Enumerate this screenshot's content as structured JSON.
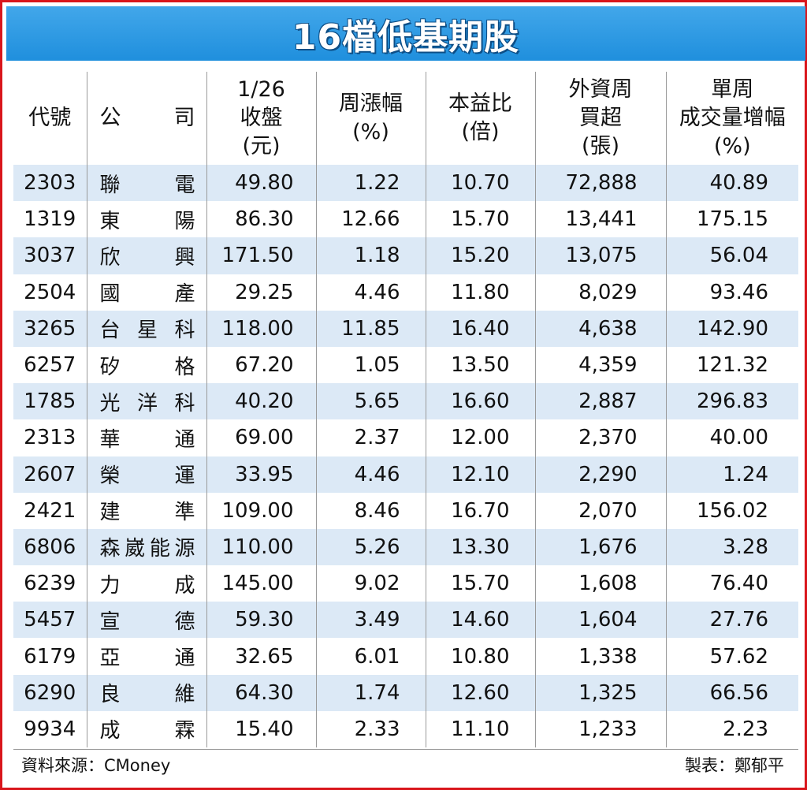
{
  "title": "16檔低基期股",
  "headers": {
    "code": "代號",
    "name": "公司",
    "close": [
      "1/26",
      "收盤",
      "(元)"
    ],
    "chg": [
      "周漲幅",
      "(%)"
    ],
    "pe": [
      "本益比",
      "(倍)"
    ],
    "foreign": [
      "外資周",
      "買超",
      "(張)"
    ],
    "vol": [
      "單周",
      "成交量增幅",
      "(%)"
    ]
  },
  "rows": [
    {
      "code": "2303",
      "name": "聯電",
      "close": "49.80",
      "chg": "1.22",
      "pe": "10.70",
      "foreign": "72,888",
      "vol": "40.89"
    },
    {
      "code": "1319",
      "name": "東陽",
      "close": "86.30",
      "chg": "12.66",
      "pe": "15.70",
      "foreign": "13,441",
      "vol": "175.15"
    },
    {
      "code": "3037",
      "name": "欣興",
      "close": "171.50",
      "chg": "1.18",
      "pe": "15.20",
      "foreign": "13,075",
      "vol": "56.04"
    },
    {
      "code": "2504",
      "name": "國產",
      "close": "29.25",
      "chg": "4.46",
      "pe": "11.80",
      "foreign": "8,029",
      "vol": "93.46"
    },
    {
      "code": "3265",
      "name": "台星科",
      "close": "118.00",
      "chg": "11.85",
      "pe": "16.40",
      "foreign": "4,638",
      "vol": "142.90"
    },
    {
      "code": "6257",
      "name": "矽格",
      "close": "67.20",
      "chg": "1.05",
      "pe": "13.50",
      "foreign": "4,359",
      "vol": "121.32"
    },
    {
      "code": "1785",
      "name": "光洋科",
      "close": "40.20",
      "chg": "5.65",
      "pe": "16.60",
      "foreign": "2,887",
      "vol": "296.83"
    },
    {
      "code": "2313",
      "name": "華通",
      "close": "69.00",
      "chg": "2.37",
      "pe": "12.00",
      "foreign": "2,370",
      "vol": "40.00"
    },
    {
      "code": "2607",
      "name": "榮運",
      "close": "33.95",
      "chg": "4.46",
      "pe": "12.10",
      "foreign": "2,290",
      "vol": "1.24"
    },
    {
      "code": "2421",
      "name": "建準",
      "close": "109.00",
      "chg": "8.46",
      "pe": "16.70",
      "foreign": "2,070",
      "vol": "156.02"
    },
    {
      "code": "6806",
      "name": "森崴能源",
      "close": "110.00",
      "chg": "5.26",
      "pe": "13.30",
      "foreign": "1,676",
      "vol": "3.28"
    },
    {
      "code": "6239",
      "name": "力成",
      "close": "145.00",
      "chg": "9.02",
      "pe": "15.70",
      "foreign": "1,608",
      "vol": "76.40"
    },
    {
      "code": "5457",
      "name": "宣德",
      "close": "59.30",
      "chg": "3.49",
      "pe": "14.60",
      "foreign": "1,604",
      "vol": "27.76"
    },
    {
      "code": "6179",
      "name": "亞通",
      "close": "32.65",
      "chg": "6.01",
      "pe": "10.80",
      "foreign": "1,338",
      "vol": "57.62"
    },
    {
      "code": "6290",
      "name": "良維",
      "close": "64.30",
      "chg": "1.74",
      "pe": "12.60",
      "foreign": "1,325",
      "vol": "66.56"
    },
    {
      "code": "9934",
      "name": "成霖",
      "close": "15.40",
      "chg": "2.33",
      "pe": "11.10",
      "foreign": "1,233",
      "vol": "2.23"
    }
  ],
  "footer": {
    "source": "資料來源：CMoney",
    "credit": "製表：鄭郁平"
  },
  "colors": {
    "border": "#d9161c",
    "title_bg": "#2496e2",
    "stripe": "#dce9f6"
  }
}
